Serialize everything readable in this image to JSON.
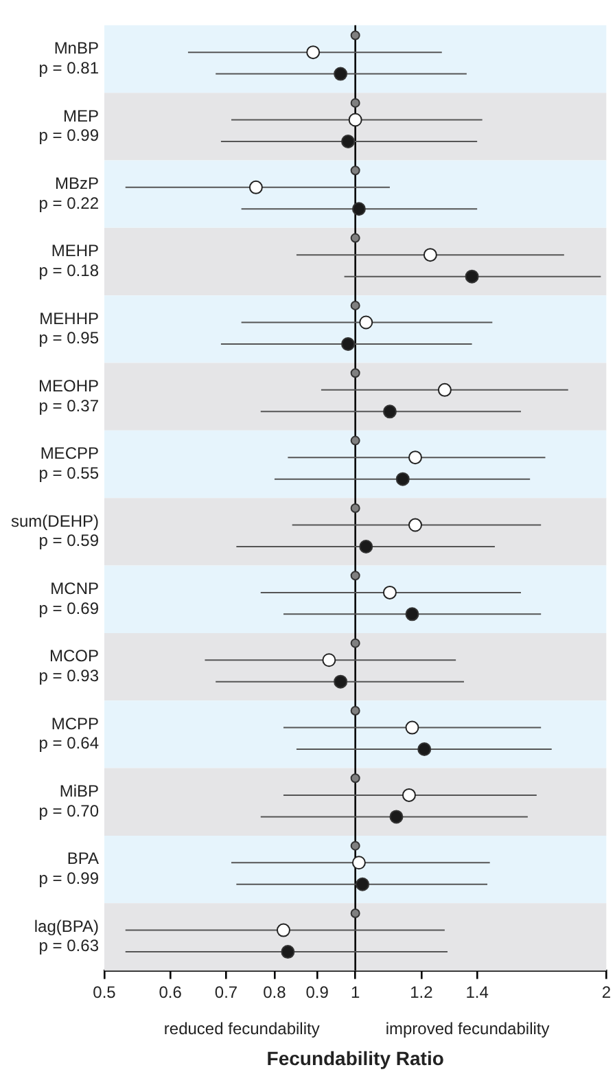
{
  "chart_data": {
    "type": "scatter",
    "orientation": "horizontal",
    "xlabel": "Fecundability Ratio",
    "categories": [
      "MnBP\np = 0.81",
      "MEP\np = 0.99",
      "MBzP\np = 0.22",
      "MEHP\np = 0.18",
      "MEHHP\np = 0.95",
      "MEOHP\np = 0.37",
      "MECPP\np = 0.55",
      "sum(DEHP)\np = 0.59",
      "MCNP\np = 0.69",
      "MCOP\np = 0.93",
      "MCPP\np = 0.64",
      "MiBP\np = 0.70",
      "BPA\np = 0.99",
      "lag(BPA)\np = 0.63"
    ],
    "series": [
      {
        "color": "#808080",
        "values": [
          1,
          1,
          1,
          1,
          1,
          1,
          1,
          1,
          1,
          1,
          1,
          1,
          1,
          1
        ]
      },
      {
        "color": "#ffffff",
        "values": [
          0.89,
          1.0,
          0.76,
          1.23,
          1.03,
          1.28,
          1.18,
          1.18,
          1.1,
          0.93,
          1.17,
          1.16,
          1.01,
          0.82
        ],
        "errors": [
          [
            0.63,
            1.27
          ],
          [
            0.71,
            1.42
          ],
          [
            0.53,
            1.1
          ],
          [
            0.85,
            1.78
          ],
          [
            0.73,
            1.46
          ],
          [
            0.91,
            1.8
          ],
          [
            0.83,
            1.69
          ],
          [
            0.84,
            1.67
          ],
          [
            0.77,
            1.58
          ],
          [
            0.66,
            1.32
          ],
          [
            0.82,
            1.67
          ],
          [
            0.82,
            1.65
          ],
          [
            0.71,
            1.45
          ],
          [
            0.53,
            1.28
          ]
        ]
      },
      {
        "color": "#1a1a1a",
        "values": [
          0.96,
          0.98,
          1.01,
          1.38,
          0.98,
          1.1,
          1.14,
          1.03,
          1.17,
          0.96,
          1.21,
          1.12,
          1.02,
          0.83
        ],
        "errors": [
          [
            0.68,
            1.36
          ],
          [
            0.69,
            1.4
          ],
          [
            0.73,
            1.4
          ],
          [
            0.97,
            1.97
          ],
          [
            0.69,
            1.38
          ],
          [
            0.77,
            1.58
          ],
          [
            0.8,
            1.62
          ],
          [
            0.72,
            1.47
          ],
          [
            0.82,
            1.67
          ],
          [
            0.68,
            1.35
          ],
          [
            0.85,
            1.72
          ],
          [
            0.77,
            1.61
          ],
          [
            0.72,
            1.44
          ],
          [
            0.53,
            1.29
          ]
        ]
      }
    ],
    "xlim": [
      0.5,
      2
    ],
    "xticks": [
      0.5,
      0.6,
      0.7,
      0.8,
      0.9,
      1,
      1.2,
      1.4,
      2
    ],
    "log": "x",
    "grid": false,
    "marker": "circle",
    "ref_lines": [
      {
        "axis": "x",
        "value": 1,
        "color": "#000000"
      }
    ],
    "annotations": [
      "reduced fecundability",
      "improved fecundability"
    ]
  }
}
